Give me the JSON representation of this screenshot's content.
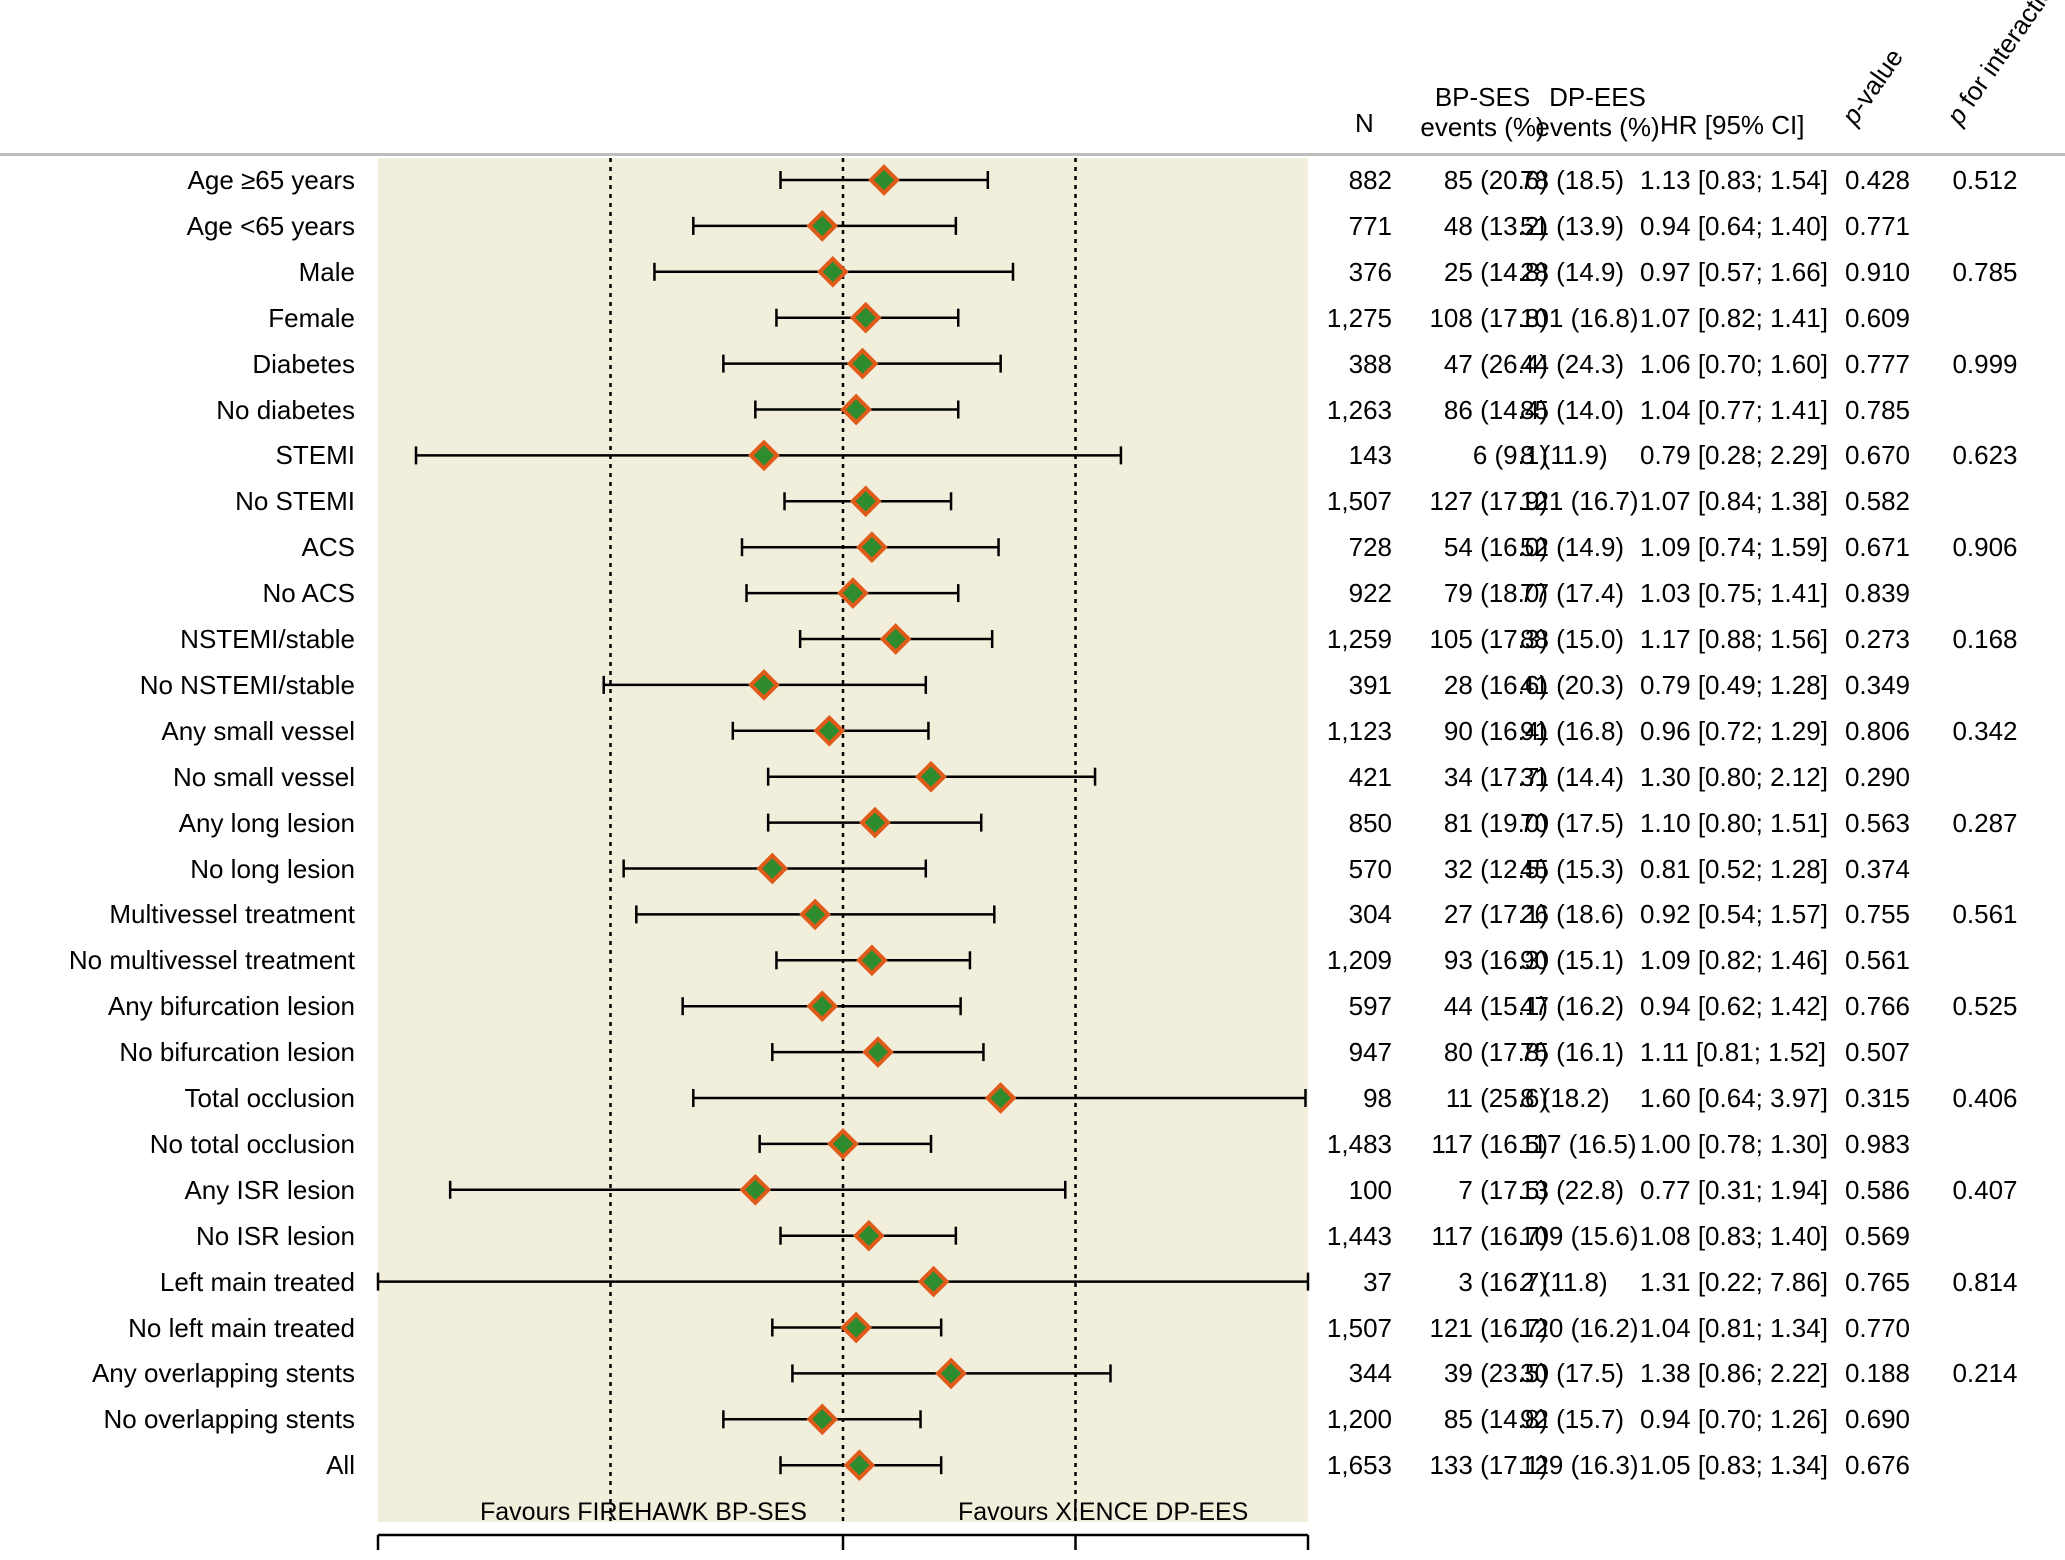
{
  "colors": {
    "panel_bg": "#f2eedc",
    "marker_fill": "#2e8b2e",
    "marker_edge": "#e05a1a",
    "ci_line": "#000000",
    "header_rule": "#bdbdbd"
  },
  "header": {
    "n": "N",
    "bp_line1": "BP-SES",
    "bp_line2": "events (%)",
    "dp_line1": "DP-EES",
    "dp_line2": "events (%)",
    "hr": "HR [95% CI]",
    "p_italic": "p",
    "p_rest": "-value",
    "pi_italic": "p",
    "pi_rest": " for interaction"
  },
  "favours": {
    "left": "Favours FIREHAWK BP-SES",
    "right": "Favours XIENCE DP-EES"
  },
  "chart_data": {
    "type": "forest",
    "scale": "log",
    "reference_line": 1.0,
    "dotted_lines": [
      0.5,
      2.0
    ],
    "axis_ticks": [
      0.25,
      1.0,
      2.0,
      4.0
    ],
    "xlim": [
      0.25,
      4.0
    ],
    "rows": [
      {
        "label": "Age ≥65 years",
        "n": "882",
        "bp": "85 (20.6)",
        "dp": "78 (18.5)",
        "hr_text": "1.13 [0.83; 1.54]",
        "p": "0.428",
        "pint": "0.512",
        "hr": 1.13,
        "lo": 0.83,
        "hi": 1.54
      },
      {
        "label": "Age <65 years",
        "n": "771",
        "bp": "48 (13.2)",
        "dp": "51 (13.9)",
        "hr_text": "0.94 [0.64; 1.40]",
        "p": "0.771",
        "pint": "",
        "hr": 0.94,
        "lo": 0.64,
        "hi": 1.4
      },
      {
        "label": "Male",
        "n": "376",
        "bp": "25 (14.8)",
        "dp": "28 (14.9)",
        "hr_text": "0.97 [0.57; 1.66]",
        "p": "0.910",
        "pint": "0.785",
        "hr": 0.97,
        "lo": 0.57,
        "hi": 1.66
      },
      {
        "label": "Female",
        "n": "1,275",
        "bp": "108 (17.8)",
        "dp": "101 (16.8)",
        "hr_text": "1.07 [0.82; 1.41]",
        "p": "0.609",
        "pint": "",
        "hr": 1.07,
        "lo": 0.82,
        "hi": 1.41
      },
      {
        "label": "Diabetes",
        "n": "388",
        "bp": "47 (26.4)",
        "dp": "44 (24.3)",
        "hr_text": "1.06 [0.70; 1.60]",
        "p": "0.777",
        "pint": "0.999",
        "hr": 1.06,
        "lo": 0.7,
        "hi": 1.6
      },
      {
        "label": "No diabetes",
        "n": "1,263",
        "bp": "86 (14.4)",
        "dp": "85 (14.0)",
        "hr_text": "1.04 [0.77; 1.41]",
        "p": "0.785",
        "pint": "",
        "hr": 1.04,
        "lo": 0.77,
        "hi": 1.41
      },
      {
        "label": "STEMI",
        "n": "143",
        "bp": "6 (9.1)",
        "dp": "8 (11.9)",
        "hr_text": "0.79 [0.28; 2.29]",
        "p": "0.670",
        "pint": "0.623",
        "hr": 0.79,
        "lo": 0.28,
        "hi": 2.29
      },
      {
        "label": "No STEMI",
        "n": "1,507",
        "bp": "127 (17.9)",
        "dp": "121 (16.7)",
        "hr_text": "1.07 [0.84; 1.38]",
        "p": "0.582",
        "pint": "",
        "hr": 1.07,
        "lo": 0.84,
        "hi": 1.38
      },
      {
        "label": "ACS",
        "n": "728",
        "bp": "54 (16.0)",
        "dp": "52 (14.9)",
        "hr_text": "1.09 [0.74; 1.59]",
        "p": "0.671",
        "pint": "0.906",
        "hr": 1.09,
        "lo": 0.74,
        "hi": 1.59
      },
      {
        "label": "No ACS",
        "n": "922",
        "bp": "79 (18.0)",
        "dp": "77 (17.4)",
        "hr_text": "1.03 [0.75; 1.41]",
        "p": "0.839",
        "pint": "",
        "hr": 1.03,
        "lo": 0.75,
        "hi": 1.41
      },
      {
        "label": "NSTEMI/stable",
        "n": "1,259",
        "bp": "105 (17.3)",
        "dp": "88 (15.0)",
        "hr_text": "1.17 [0.88; 1.56]",
        "p": "0.273",
        "pint": "0.168",
        "hr": 1.17,
        "lo": 0.88,
        "hi": 1.56
      },
      {
        "label": "No NSTEMI/stable",
        "n": "391",
        "bp": "28 (16.6)",
        "dp": "41 (20.3)",
        "hr_text": "0.79 [0.49; 1.28]",
        "p": "0.349",
        "pint": "",
        "hr": 0.79,
        "lo": 0.49,
        "hi": 1.28
      },
      {
        "label": "Any small vessel",
        "n": "1,123",
        "bp": "90 (16.4)",
        "dp": "91 (16.8)",
        "hr_text": "0.96 [0.72; 1.29]",
        "p": "0.806",
        "pint": "0.342",
        "hr": 0.96,
        "lo": 0.72,
        "hi": 1.29
      },
      {
        "label": "No small vessel",
        "n": "421",
        "bp": "34 (17.7)",
        "dp": "31 (14.4)",
        "hr_text": "1.30 [0.80; 2.12]",
        "p": "0.290",
        "pint": "",
        "hr": 1.3,
        "lo": 0.8,
        "hi": 2.12
      },
      {
        "label": "Any long lesion",
        "n": "850",
        "bp": "81 (19.0)",
        "dp": "70 (17.5)",
        "hr_text": "1.10 [0.80; 1.51]",
        "p": "0.563",
        "pint": "0.287",
        "hr": 1.1,
        "lo": 0.8,
        "hi": 1.51
      },
      {
        "label": "No long lesion",
        "n": "570",
        "bp": "32 (12.5)",
        "dp": "45 (15.3)",
        "hr_text": "0.81 [0.52; 1.28]",
        "p": "0.374",
        "pint": "",
        "hr": 0.81,
        "lo": 0.52,
        "hi": 1.28
      },
      {
        "label": "Multivessel treatment",
        "n": "304",
        "bp": "27 (17.1)",
        "dp": "26 (18.6)",
        "hr_text": "0.92 [0.54; 1.57]",
        "p": "0.755",
        "pint": "0.561",
        "hr": 0.92,
        "lo": 0.54,
        "hi": 1.57
      },
      {
        "label": "No multivessel treatment",
        "n": "1,209",
        "bp": "93 (16.3)",
        "dp": "90 (15.1)",
        "hr_text": "1.09 [0.82; 1.46]",
        "p": "0.561",
        "pint": "",
        "hr": 1.09,
        "lo": 0.82,
        "hi": 1.46
      },
      {
        "label": "Any bifurcation lesion",
        "n": "597",
        "bp": "44 (15.1)",
        "dp": "47 (16.2)",
        "hr_text": "0.94 [0.62; 1.42]",
        "p": "0.766",
        "pint": "0.525",
        "hr": 0.94,
        "lo": 0.62,
        "hi": 1.42
      },
      {
        "label": "No bifurcation lesion",
        "n": "947",
        "bp": "80 (17.8)",
        "dp": "75 (16.1)",
        "hr_text": "1.11 [0.81; 1.52]",
        "p": "0.507",
        "pint": "",
        "hr": 1.11,
        "lo": 0.81,
        "hi": 1.52
      },
      {
        "label": "Total occlusion",
        "n": "98",
        "bp": "11 (25.6)",
        "dp": "8 (18.2)",
        "hr_text": "1.60 [0.64; 3.97]",
        "p": "0.315",
        "pint": "0.406",
        "hr": 1.6,
        "lo": 0.64,
        "hi": 3.97
      },
      {
        "label": "No total occlusion",
        "n": "1,483",
        "bp": "117 (16.5)",
        "dp": "117 (16.5)",
        "hr_text": "1.00 [0.78; 1.30]",
        "p": "0.983",
        "pint": "",
        "hr": 1.0,
        "lo": 0.78,
        "hi": 1.3
      },
      {
        "label": "Any ISR lesion",
        "n": "100",
        "bp": "7 (17.5)",
        "dp": "13 (22.8)",
        "hr_text": "0.77 [0.31; 1.94]",
        "p": "0.586",
        "pint": "0.407",
        "hr": 0.77,
        "lo": 0.31,
        "hi": 1.94
      },
      {
        "label": "No ISR lesion",
        "n": "1,443",
        "bp": "117 (16.7)",
        "dp": "109 (15.6)",
        "hr_text": "1.08 [0.83; 1.40]",
        "p": "0.569",
        "pint": "",
        "hr": 1.08,
        "lo": 0.83,
        "hi": 1.4
      },
      {
        "label": "Left main treated",
        "n": "37",
        "bp": "3 (16.7)",
        "dp": "2 (11.8)",
        "hr_text": "1.31 [0.22; 7.86]",
        "p": "0.765",
        "pint": "0.814",
        "hr": 1.31,
        "lo": 0.22,
        "hi": 7.86
      },
      {
        "label": "No left main treated",
        "n": "1,507",
        "bp": "121 (16.7)",
        "dp": "120 (16.2)",
        "hr_text": "1.04 [0.81; 1.34]",
        "p": "0.770",
        "pint": "",
        "hr": 1.04,
        "lo": 0.81,
        "hi": 1.34
      },
      {
        "label": "Any overlapping stents",
        "n": "344",
        "bp": "39 (23.5)",
        "dp": "30 (17.5)",
        "hr_text": "1.38 [0.86; 2.22]",
        "p": "0.188",
        "pint": "0.214",
        "hr": 1.38,
        "lo": 0.86,
        "hi": 2.22
      },
      {
        "label": "No overlapping stents",
        "n": "1,200",
        "bp": "85 (14.8)",
        "dp": "92 (15.7)",
        "hr_text": "0.94 [0.70; 1.26]",
        "p": "0.690",
        "pint": "",
        "hr": 0.94,
        "lo": 0.7,
        "hi": 1.26
      },
      {
        "label": "All",
        "n": "1,653",
        "bp": "133 (17.1)",
        "dp": "129 (16.3)",
        "hr_text": "1.05 [0.83; 1.34]",
        "p": "0.676",
        "pint": "",
        "hr": 1.05,
        "lo": 0.83,
        "hi": 1.34
      }
    ]
  }
}
